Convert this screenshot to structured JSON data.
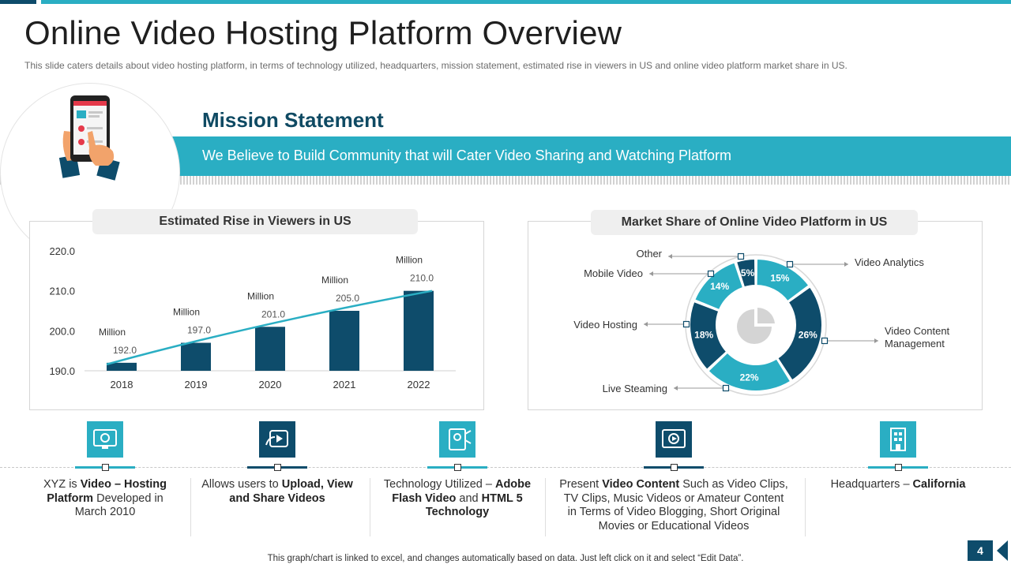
{
  "header": {
    "title": "Online Video Hosting Platform Overview",
    "subtitle": "This slide caters details about video  hosting platform,  in terms of technology utilized, headquarters,  mission statement, estimated rise in viewers  in US and online video  platform  market share in US."
  },
  "mission": {
    "title": "Mission Statement",
    "text": "We Believe to Build Community that will Cater Video Sharing and Watching Platform"
  },
  "colors": {
    "teal": "#2aaec3",
    "navy": "#0e4c6b",
    "dark_navy": "#0f4a63"
  },
  "chart_data": [
    {
      "type": "bar",
      "title": "Estimated Rise in Viewers in US",
      "categories": [
        "2018",
        "2019",
        "2020",
        "2021",
        "2022"
      ],
      "values": [
        192.0,
        197.0,
        201.0,
        205.0,
        210.0
      ],
      "value_labels": [
        "192.0",
        "197.0",
        "201.0",
        "205.0",
        "210.0"
      ],
      "unit_label": "Million",
      "y_ticks": [
        "190.0",
        "200.0",
        "210.0",
        "220.0"
      ],
      "ylim": [
        190,
        220
      ],
      "trendline": true,
      "grid": false
    },
    {
      "type": "pie",
      "style": "donut",
      "title": "Market Share of Online Video Platform in US",
      "slices": [
        {
          "label": "Video Analytics",
          "value": 15,
          "value_label": "15%",
          "color": "#2aaec3"
        },
        {
          "label": "Video Content Management",
          "value": 26,
          "value_label": "26%",
          "color": "#0e4c6b"
        },
        {
          "label": "Live  Steaming",
          "value": 22,
          "value_label": "22%",
          "color": "#2aaec3"
        },
        {
          "label": "Video Hosting",
          "value": 18,
          "value_label": "18%",
          "color": "#0e4c6b"
        },
        {
          "label": "Mobile Video",
          "value": 14,
          "value_label": "14%",
          "color": "#2aaec3"
        },
        {
          "label": "Other",
          "value": 5,
          "value_label": "5%",
          "color": "#0e4c6b"
        }
      ],
      "label_lines": [
        "Video Content",
        "Management"
      ]
    }
  ],
  "features": [
    {
      "icon": "monitor-icon",
      "color": "#2aaec3",
      "html_parts": [
        "XYZ  is ",
        "Video – Hosting Platform",
        " Developed  in March 2010"
      ]
    },
    {
      "icon": "video-share-icon",
      "color": "#0e4c6b",
      "html_parts": [
        "Allows users to ",
        "Upload, View and Share Videos",
        ""
      ]
    },
    {
      "icon": "technology-icon",
      "color": "#2aaec3",
      "html_parts": [
        "Technology Utilized – ",
        "Adobe Flash Video",
        " and ",
        "HTML 5 Technology"
      ]
    },
    {
      "icon": "video-player-icon",
      "color": "#0e4c6b",
      "html_parts": [
        "Present ",
        "Video Content",
        " Such as Video Clips, TV Clips, Music Videos or Amateur Content in Terms of Video Blogging, Short Original Movies or Educational Videos"
      ]
    },
    {
      "icon": "building-icon",
      "color": "#2aaec3",
      "html_parts": [
        "Headquarters – ",
        "California",
        ""
      ]
    }
  ],
  "footer": {
    "note": "This graph/chart is linked to excel,  and changes automatically based on data. Just left click on it and select “Edit Data”.",
    "page_number": "4"
  }
}
